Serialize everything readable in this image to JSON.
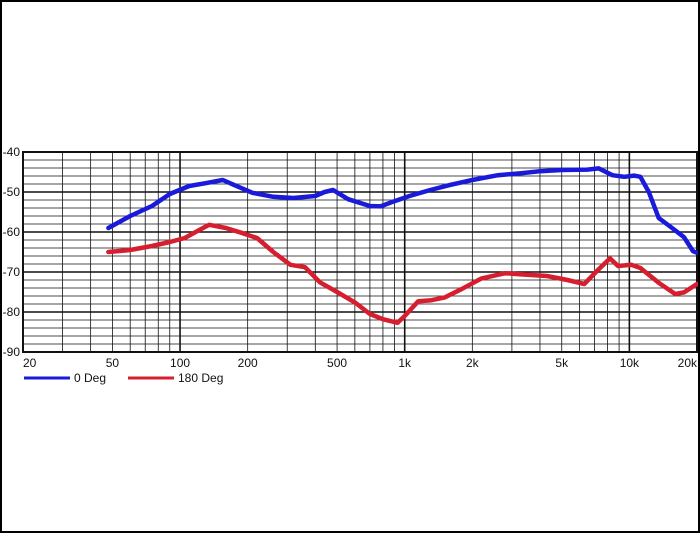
{
  "chart_data": {
    "type": "line",
    "xscale": "log",
    "xlim": [
      20,
      20000
    ],
    "ylim": [
      -90,
      -40
    ],
    "grid": true,
    "legend_position": "bottom-left",
    "x_tick_labels": [
      {
        "value": 20,
        "label": "20"
      },
      {
        "value": 50,
        "label": "50"
      },
      {
        "value": 100,
        "label": "100"
      },
      {
        "value": 200,
        "label": "200"
      },
      {
        "value": 500,
        "label": "500"
      },
      {
        "value": 1000,
        "label": "1k"
      },
      {
        "value": 2000,
        "label": "2k"
      },
      {
        "value": 5000,
        "label": "5k"
      },
      {
        "value": 10000,
        "label": "10k"
      },
      {
        "value": 20000,
        "label": "20k"
      }
    ],
    "y_tick_labels": [
      {
        "value": -40,
        "label": "-40"
      },
      {
        "value": -50,
        "label": "-50"
      },
      {
        "value": -60,
        "label": "-60"
      },
      {
        "value": -70,
        "label": "-70"
      },
      {
        "value": -80,
        "label": "-80"
      },
      {
        "value": -90,
        "label": "-90"
      }
    ],
    "series": [
      {
        "name": "0 Deg",
        "color": "#1a1adb",
        "x": [
          48,
          60,
          75,
          90,
          110,
          130,
          155,
          175,
          210,
          260,
          320,
          400,
          440,
          480,
          560,
          700,
          780,
          900,
          1050,
          1300,
          1600,
          2000,
          2600,
          3300,
          4000,
          5000,
          6500,
          7300,
          8400,
          9500,
          10500,
          11200,
          12200,
          13500,
          15500,
          17500,
          19200,
          20000
        ],
        "y": [
          -59,
          -56,
          -53.5,
          -50.5,
          -48.5,
          -47.8,
          -47,
          -48.3,
          -50.2,
          -51.2,
          -51.5,
          -51,
          -50,
          -49.5,
          -51.8,
          -53.5,
          -53.6,
          -52.3,
          -51,
          -49.5,
          -48.2,
          -47,
          -45.8,
          -45.3,
          -44.8,
          -44.5,
          -44.4,
          -44.1,
          -45.8,
          -46.2,
          -45.9,
          -46.2,
          -50,
          -56.5,
          -59,
          -61.3,
          -64.8,
          -65.2
        ]
      },
      {
        "name": "180 Deg",
        "color": "#d61e2f",
        "x": [
          48,
          60,
          75,
          90,
          105,
          120,
          135,
          160,
          190,
          220,
          260,
          310,
          360,
          420,
          500,
          600,
          700,
          800,
          930,
          1000,
          1150,
          1300,
          1500,
          1800,
          2200,
          2800,
          3300,
          4300,
          5300,
          6300,
          7300,
          8200,
          8900,
          10200,
          11200,
          13500,
          16000,
          17500,
          20000
        ],
        "y": [
          -65,
          -64.5,
          -63.5,
          -62.5,
          -61.5,
          -59.7,
          -58.2,
          -59,
          -60.3,
          -61.5,
          -65,
          -68.2,
          -68.8,
          -72.6,
          -75,
          -77.6,
          -80.5,
          -81.8,
          -82.7,
          -81,
          -77.3,
          -77.1,
          -76.4,
          -74.2,
          -71.6,
          -70.3,
          -70.6,
          -71,
          -72,
          -73,
          -69.3,
          -66.6,
          -68.5,
          -68.2,
          -69,
          -72.7,
          -75.5,
          -75.1,
          -73
        ]
      }
    ]
  }
}
